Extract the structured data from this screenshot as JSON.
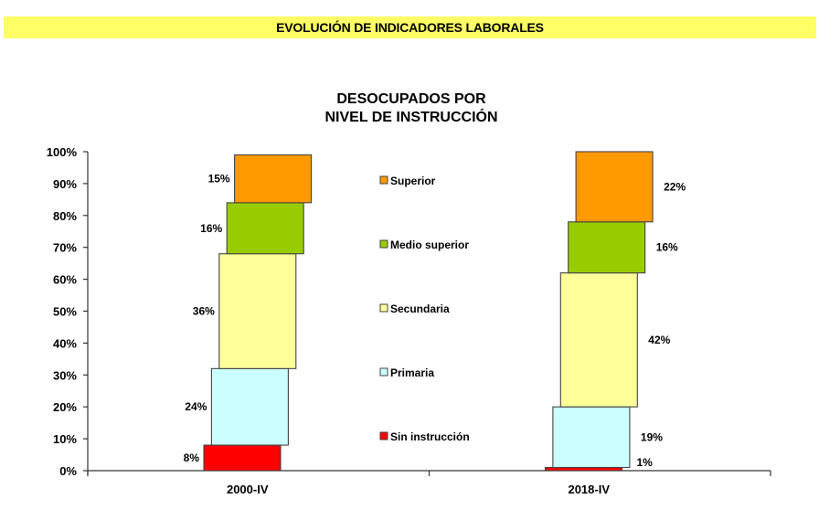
{
  "header": {
    "banner_title": "EVOLUCIÓN DE INDICADORES LABORALES"
  },
  "colors": {
    "banner": "#ffff66"
  },
  "chart_data": {
    "type": "bar",
    "stacked": true,
    "title_lines": [
      "DESOCUPADOS POR",
      "NIVEL DE INSTRUCCIÓN"
    ],
    "xlabel": "",
    "ylabel": "",
    "ylim": [
      0,
      100
    ],
    "yticks": [
      "0%",
      "10%",
      "20%",
      "30%",
      "40%",
      "50%",
      "60%",
      "70%",
      "80%",
      "90%",
      "100%"
    ],
    "categories": [
      "2000-IV",
      "2018-IV"
    ],
    "legend_position": "center",
    "series": [
      {
        "name": "Sin instrucción",
        "color": "#ff0000",
        "values": [
          8,
          1
        ],
        "labels": [
          "8%",
          "1%"
        ]
      },
      {
        "name": "Primaria",
        "color": "#ccffff",
        "values": [
          24,
          19
        ],
        "labels": [
          "24%",
          "19%"
        ]
      },
      {
        "name": "Secundaria",
        "color": "#ffff99",
        "values": [
          36,
          42
        ],
        "labels": [
          "36%",
          "42%"
        ]
      },
      {
        "name": "Medio superior",
        "color": "#99cc00",
        "values": [
          16,
          16
        ],
        "labels": [
          "16%",
          "16%"
        ]
      },
      {
        "name": "Superior",
        "color": "#ff9900",
        "values": [
          15,
          22
        ],
        "labels": [
          "15%",
          "22%"
        ]
      }
    ]
  }
}
